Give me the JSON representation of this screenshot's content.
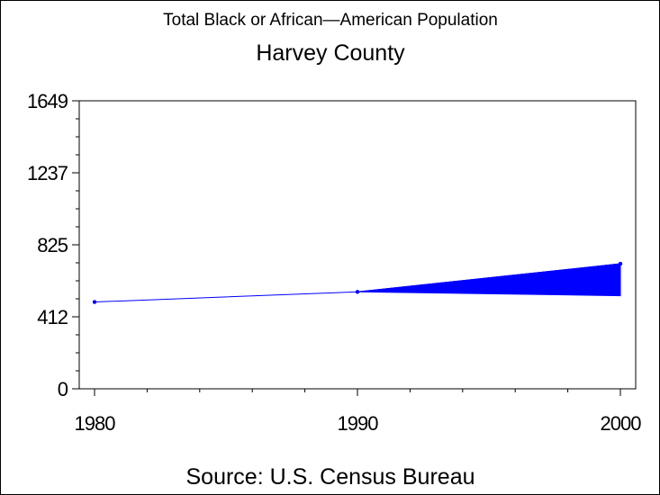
{
  "chart_data": {
    "type": "line",
    "title": "Total Black or African—American Population",
    "subtitle": "Harvey County",
    "footnote": "Source: U.S. Census Bureau",
    "xlabel": "",
    "ylabel": "",
    "x": [
      1980,
      1990,
      2000
    ],
    "series": [
      {
        "name": "",
        "values": [
          497,
          555,
          716
        ]
      }
    ],
    "band": {
      "from_x": 1990,
      "to_x": 2000,
      "upper": [
        555,
        716
      ],
      "lower": [
        555,
        533
      ]
    },
    "x_ticks": [
      "1980",
      "1990",
      "2000"
    ],
    "y_ticks": [
      "0",
      "412",
      "825",
      "1237",
      "1649"
    ],
    "ylim": [
      0,
      1649
    ],
    "xlim": [
      1980,
      2000
    ],
    "grid": false,
    "legend": "none",
    "colors": {
      "series": "#0000ff",
      "axis": "#000000",
      "background": "#ffffff"
    }
  }
}
